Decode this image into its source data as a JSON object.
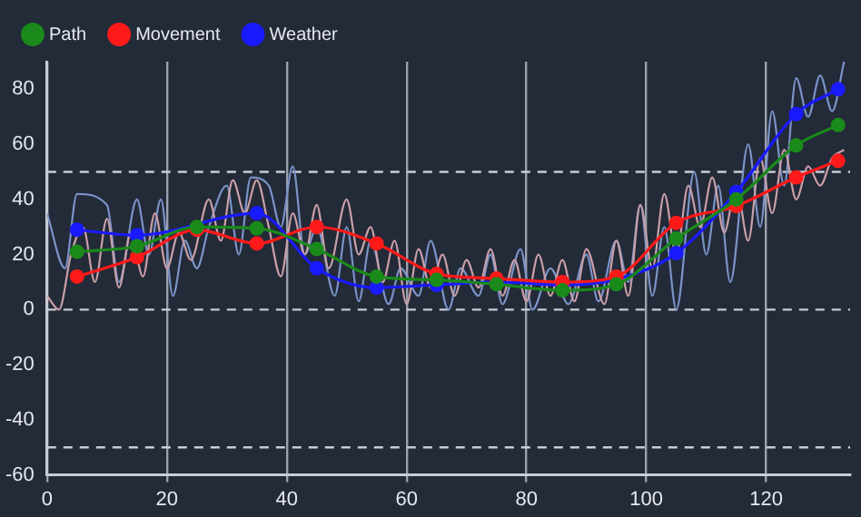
{
  "chart_data": {
    "type": "line",
    "xlim": [
      0,
      134
    ],
    "xticks": [
      0,
      20,
      40,
      60,
      80,
      100,
      120
    ],
    "ylim": [
      -60,
      90
    ],
    "yticks": [
      -60,
      -40,
      -20,
      0,
      20,
      40,
      60,
      80
    ],
    "grid": "x",
    "legend": "top left",
    "marker": "circle",
    "line_style": "solid",
    "ref_lines": [
      {
        "axis": "y",
        "value": 50,
        "color": "#c8ccd4",
        "line_style": "dashed"
      },
      {
        "axis": "y",
        "value": 0,
        "color": "#c8ccd4",
        "line_style": "dashed"
      },
      {
        "axis": "y",
        "value": -50,
        "color": "#c8ccd4",
        "line_style": "dashed"
      }
    ],
    "series": [
      {
        "color": "#7b93c8",
        "marker": "none",
        "x": [
          0,
          3,
          5,
          10,
          12,
          15,
          17,
          19,
          21,
          23,
          25,
          27,
          30,
          32,
          34,
          37,
          39,
          41,
          43,
          45,
          48,
          50,
          52,
          54,
          57,
          59,
          62,
          64,
          67,
          69,
          72,
          74,
          76,
          79,
          81,
          84,
          87,
          90,
          92,
          95,
          97,
          99,
          101,
          103,
          105,
          108,
          110,
          112,
          114,
          117,
          119,
          121,
          123,
          125,
          127,
          129,
          131,
          133
        ],
        "values": [
          35,
          15,
          42,
          38,
          10,
          40,
          20,
          40,
          5,
          25,
          15,
          30,
          45,
          20,
          48,
          45,
          30,
          52,
          20,
          30,
          5,
          30,
          3,
          25,
          2,
          15,
          5,
          25,
          0,
          15,
          5,
          20,
          2,
          22,
          0,
          15,
          2,
          20,
          3,
          25,
          10,
          38,
          5,
          30,
          0,
          50,
          20,
          45,
          10,
          60,
          30,
          72,
          45,
          84,
          70,
          85,
          72,
          90
        ]
      },
      {
        "color": "#c9a0a8",
        "marker": "none",
        "x": [
          0,
          2,
          4,
          6,
          8,
          10,
          12,
          14,
          16,
          18,
          20,
          22,
          24,
          27,
          29,
          31,
          33,
          35,
          37,
          39,
          41,
          43,
          45,
          47,
          50,
          52,
          54,
          56,
          58,
          60,
          62,
          64,
          66,
          68,
          70,
          72,
          74,
          76,
          78,
          80,
          82,
          84,
          86,
          88,
          90,
          93,
          95,
          97,
          99,
          101,
          103,
          105,
          107,
          109,
          111,
          113,
          115,
          117,
          119,
          121,
          123,
          125,
          127,
          129,
          131,
          133
        ],
        "values": [
          5,
          0,
          20,
          30,
          10,
          33,
          8,
          28,
          12,
          35,
          15,
          28,
          18,
          40,
          25,
          47,
          35,
          47,
          30,
          12,
          35,
          20,
          38,
          15,
          40,
          20,
          30,
          10,
          25,
          2,
          22,
          8,
          20,
          5,
          18,
          8,
          22,
          5,
          18,
          3,
          20,
          5,
          18,
          3,
          22,
          2,
          25,
          5,
          38,
          15,
          42,
          20,
          45,
          30,
          48,
          28,
          45,
          25,
          55,
          35,
          58,
          40,
          52,
          45,
          55,
          58
        ]
      },
      {
        "name": "Path",
        "color": "#1a8a1a",
        "x": [
          5,
          15,
          25,
          35,
          45,
          55,
          65,
          75,
          86,
          95,
          105,
          115,
          125,
          132
        ],
        "values": [
          21,
          23,
          30,
          29.5,
          22,
          12,
          10.8,
          9.2,
          7,
          9.2,
          25.8,
          40,
          59.6,
          67
        ]
      },
      {
        "name": "Movement",
        "color": "#ff1a1a",
        "x": [
          5,
          15,
          25,
          35,
          45,
          55,
          65,
          75,
          86,
          95,
          105,
          115,
          125,
          132
        ],
        "values": [
          12,
          19,
          29,
          24,
          30,
          24,
          13,
          11.3,
          10,
          12,
          31.5,
          37.6,
          48,
          54
        ]
      },
      {
        "name": "Weather",
        "color": "#1a1aff",
        "x": [
          5,
          15,
          35,
          45,
          55,
          65,
          75,
          86,
          95,
          105,
          115,
          125,
          132
        ],
        "values": [
          29,
          27,
          35,
          15,
          8,
          9,
          10,
          9,
          11,
          20.5,
          42.7,
          71,
          80
        ]
      }
    ]
  }
}
